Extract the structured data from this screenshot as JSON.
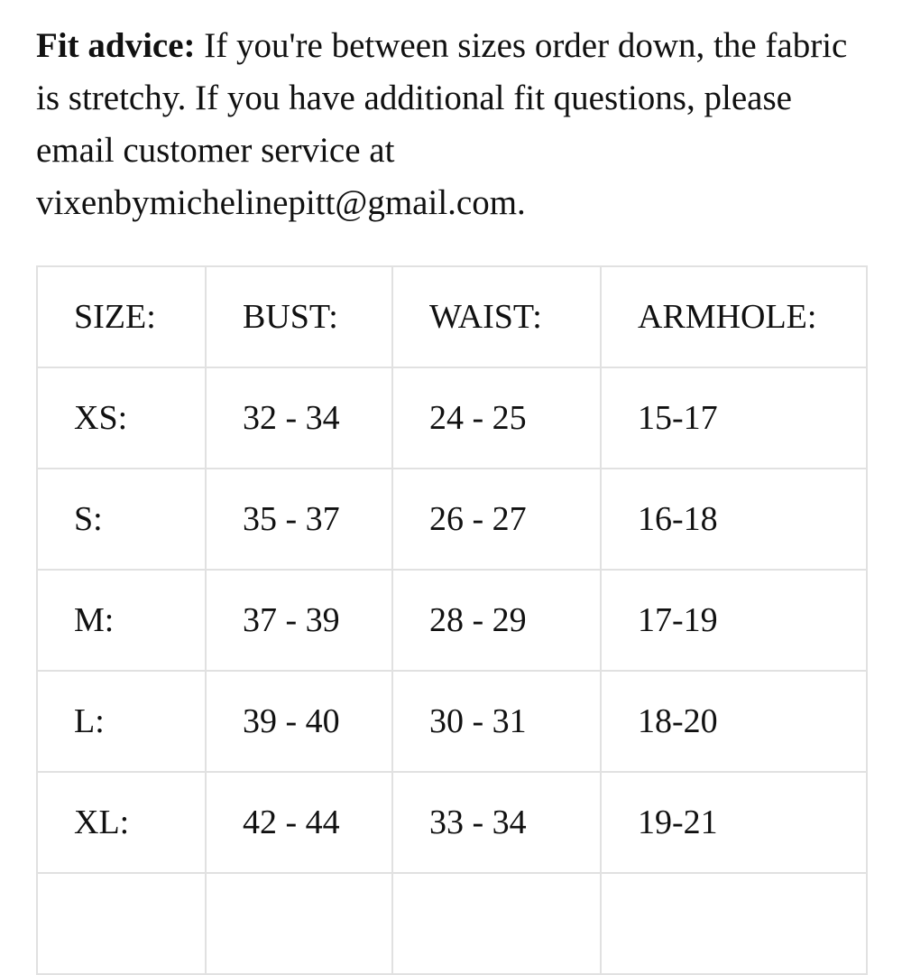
{
  "page": {
    "background_color": "#ffffff",
    "text_color": "#111111",
    "table_border_color": "#e1e1e1"
  },
  "fit_advice": {
    "label": "Fit advice:",
    "lines": [
      "If you're between sizes order down, the fabric",
      "is stretchy. If you have additional fit questions, please",
      "email customer service at",
      "vixenbymichelinepitt@gmail.com."
    ]
  },
  "size_chart": {
    "columns": [
      "SIZE:",
      "BUST:",
      "WAIST:",
      "ARMHOLE:"
    ],
    "rows": [
      {
        "size": "XS:",
        "bust": "32 - 34",
        "waist": "24 - 25",
        "armhole": "15-17"
      },
      {
        "size": "S:",
        "bust": "35 - 37",
        "waist": "26 - 27",
        "armhole": "16-18"
      },
      {
        "size": "M:",
        "bust": "37 - 39",
        "waist": "28 - 29",
        "armhole": "17-19"
      },
      {
        "size": "L:",
        "bust": "39 - 40",
        "waist": "30 - 31",
        "armhole": "18-20"
      },
      {
        "size": "XL:",
        "bust": "42 - 44",
        "waist": "33 - 34",
        "armhole": "19-21"
      }
    ]
  }
}
